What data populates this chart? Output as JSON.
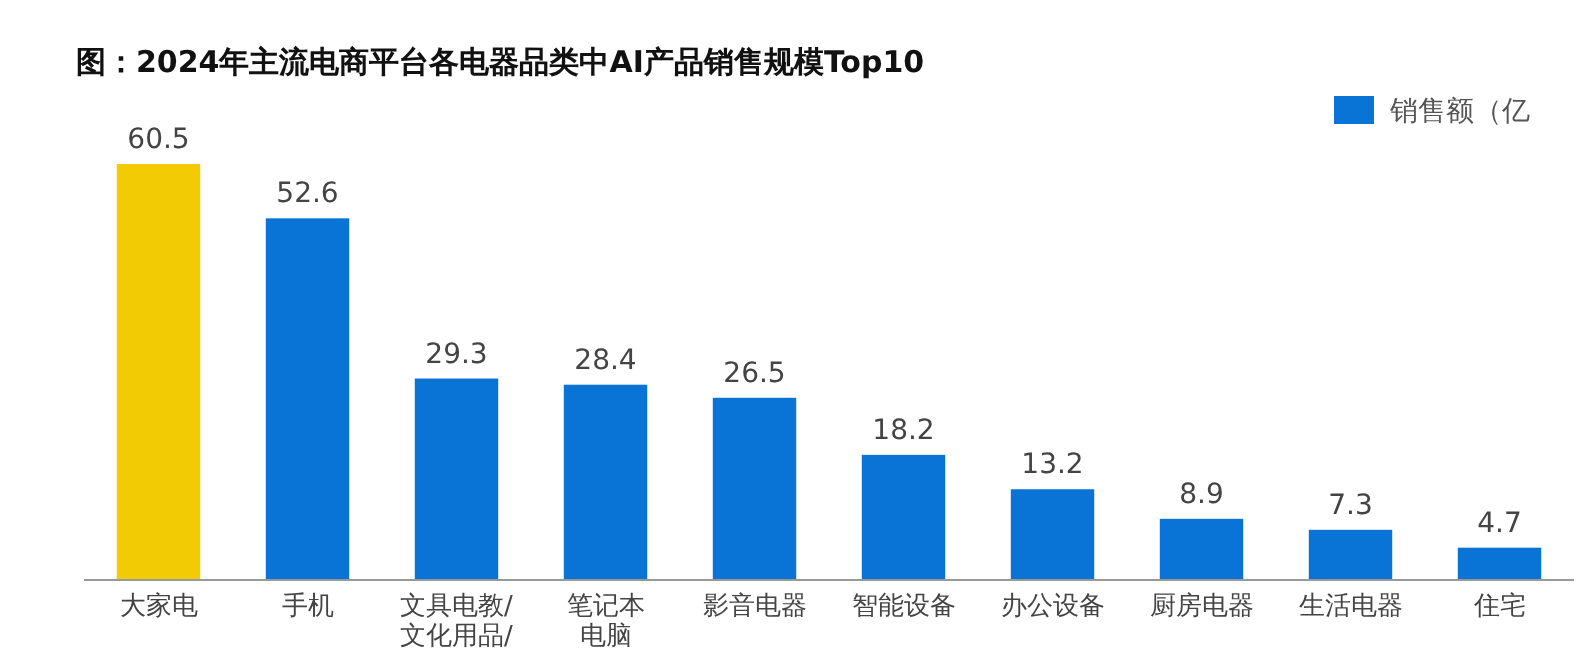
{
  "chart_data": {
    "type": "bar",
    "title": "图：2024年主流电商平台各电器品类中AI产品销售规模Top10",
    "categories": [
      "大家电",
      "手机",
      "文具电教/文化用品/",
      "笔记本电脑",
      "影音电器",
      "智能设备",
      "办公设备",
      "厨房电器",
      "生活电器",
      "住宅"
    ],
    "series": [
      {
        "name": "销售额（亿",
        "color": "#0a74d6",
        "colors": [
          "#f2cb05",
          "#0a74d6",
          "#0a74d6",
          "#0a74d6",
          "#0a74d6",
          "#0a74d6",
          "#0a74d6",
          "#0a74d6",
          "#0a74d6",
          "#0a74d6"
        ],
        "values": [
          60.5,
          52.6,
          29.3,
          28.4,
          26.5,
          18.2,
          13.2,
          8.9,
          7.3,
          4.7
        ]
      }
    ],
    "data_labels": true,
    "legend": "top right"
  }
}
